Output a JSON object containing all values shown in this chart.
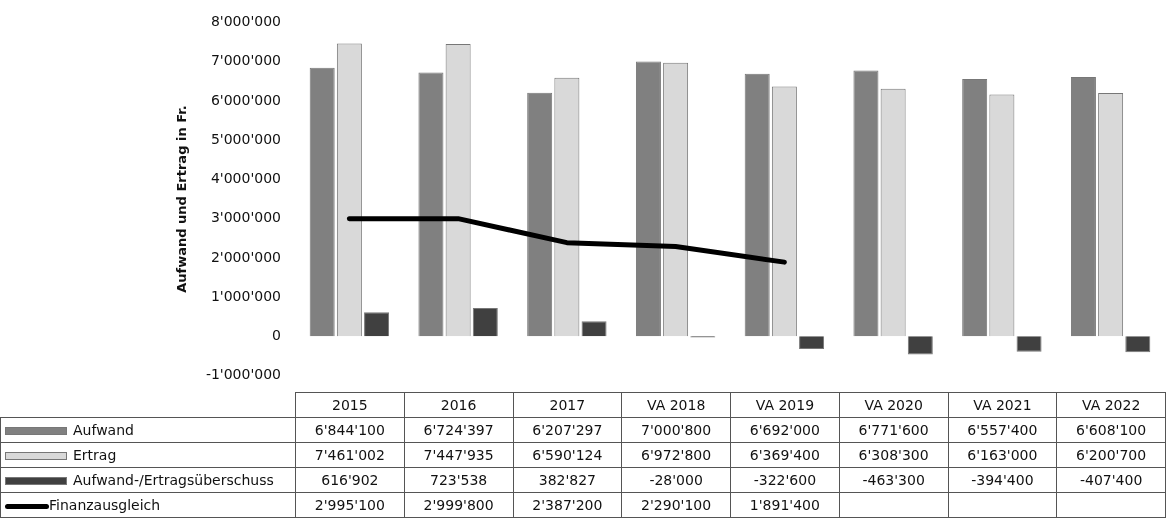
{
  "chart_data": {
    "type": "bar",
    "ylabel": "Aufwand und Ertrag in Fr.",
    "categories": [
      "2015",
      "2016",
      "2017",
      "VA 2018",
      "VA 2019",
      "VA 2020",
      "VA 2021",
      "VA 2022"
    ],
    "series": [
      {
        "name": "Aufwand",
        "color": "#808080",
        "values": [
          6844100,
          6724397,
          6207297,
          7000800,
          6692000,
          6771600,
          6557400,
          6608100
        ],
        "value_labels": [
          "6'844'100",
          "6'724'397",
          "6'207'297",
          "7'000'800",
          "6'692'000",
          "6'771'600",
          "6'557'400",
          "6'608'100"
        ]
      },
      {
        "name": "Ertrag",
        "color": "#d9d9d9",
        "values": [
          7461002,
          7447935,
          6590124,
          6972800,
          6369400,
          6308300,
          6163000,
          6200700
        ],
        "value_labels": [
          "7'461'002",
          "7'447'935",
          "6'590'124",
          "6'972'800",
          "6'369'400",
          "6'308'300",
          "6'163'000",
          "6'200'700"
        ]
      },
      {
        "name": "Aufwand-/Ertragsüberschuss",
        "color": "#404040",
        "values": [
          616902,
          723538,
          382827,
          -28000,
          -322600,
          -463300,
          -394400,
          -407400
        ],
        "value_labels": [
          "616'902",
          "723'538",
          "382'827",
          "-28'000",
          "-322'600",
          "-463'300",
          "-394'400",
          "-407'400"
        ]
      },
      {
        "name": "Finanzausgleich",
        "type": "line",
        "color": "#000000",
        "values": [
          2995100,
          2999800,
          2387200,
          2290100,
          1891400,
          null,
          null,
          null
        ],
        "value_labels": [
          "2'995'100",
          "2'999'800",
          "2'387'200",
          "2'290'100",
          "1'891'400",
          null,
          null,
          null
        ]
      }
    ],
    "ylim": [
      -1000000,
      8000000
    ],
    "yticks": [
      {
        "value": -1000000,
        "label": "-1'000'000"
      },
      {
        "value": 0,
        "label": "0"
      },
      {
        "value": 1000000,
        "label": "1'000'000"
      },
      {
        "value": 2000000,
        "label": "2'000'000"
      },
      {
        "value": 3000000,
        "label": "3'000'000"
      },
      {
        "value": 4000000,
        "label": "4'000'000"
      },
      {
        "value": 5000000,
        "label": "5'000'000"
      },
      {
        "value": 6000000,
        "label": "6'000'000"
      },
      {
        "value": 7000000,
        "label": "7'000'000"
      },
      {
        "value": 8000000,
        "label": "8'000'000"
      }
    ],
    "grid": false,
    "legend": "bottom",
    "marker": "none",
    "data_labels": true
  }
}
